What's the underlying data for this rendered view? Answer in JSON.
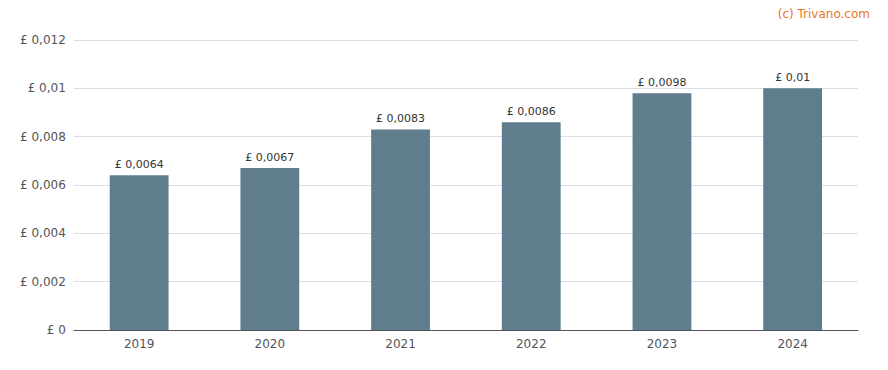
{
  "chart_data": {
    "type": "bar",
    "categories": [
      "2019",
      "2020",
      "2021",
      "2022",
      "2023",
      "2024"
    ],
    "values": [
      0.0064,
      0.0067,
      0.0083,
      0.0086,
      0.0098,
      0.01
    ],
    "value_labels": [
      "£ 0,0064",
      "£ 0,0067",
      "£ 0,0083",
      "£ 0,0086",
      "£ 0,0098",
      "£ 0,01"
    ],
    "color": "#5f7d8c",
    "ylim": [
      0,
      0.012
    ],
    "yticks": [
      {
        "value": 0,
        "label": "£ 0"
      },
      {
        "value": 0.002,
        "label": "£ 0,002"
      },
      {
        "value": 0.004,
        "label": "£ 0,004"
      },
      {
        "value": 0.006,
        "label": "£ 0,006"
      },
      {
        "value": 0.008,
        "label": "£ 0,008"
      },
      {
        "value": 0.01,
        "label": "£ 0,01"
      },
      {
        "value": 0.012,
        "label": "£ 0,012"
      }
    ],
    "grid": true,
    "data_labels": true,
    "annotations": [
      {
        "text": "(c) Trivano.com",
        "color": "#e87722"
      }
    ]
  }
}
